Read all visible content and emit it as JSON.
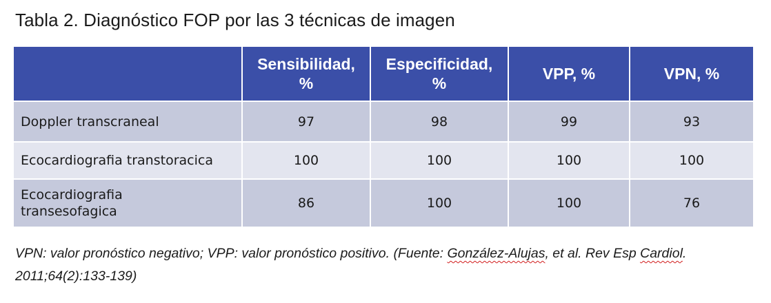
{
  "title": "Tabla 2. Diagnóstico FOP por las 3 técnicas de imagen",
  "table": {
    "headers": [
      {
        "line1": "",
        "line2": ""
      },
      {
        "line1": "Sensibilidad,",
        "line2": "%"
      },
      {
        "line1": "Especificidad,",
        "line2": "%"
      },
      {
        "line1": "VPP, %",
        "line2": ""
      },
      {
        "line1": "VPN, %",
        "line2": ""
      }
    ],
    "rows": [
      {
        "label_line1": "Doppler transcraneal",
        "label_line2": "",
        "values": [
          "97",
          "98",
          "99",
          "93"
        ]
      },
      {
        "label_line1": "Ecocardiografia transtoracica",
        "label_line2": "",
        "values": [
          "100",
          "100",
          "100",
          "100"
        ]
      },
      {
        "label_line1": "Ecocardiografia",
        "label_line2": "transesofagica",
        "values": [
          "86",
          "100",
          "100",
          "76"
        ]
      }
    ]
  },
  "caption": {
    "text_a": "VPN: valor pronóstico negativo; VPP: valor pronóstico positivo. (Fuente: ",
    "author": "González-Alujas",
    "text_b": ", et al. Rev Esp ",
    "journal": "Cardiol",
    "text_c": ". 2011;64(2):133-139)"
  },
  "colors": {
    "header_bg": "#3b4fa8",
    "row_dark": "#c5c9dc",
    "row_light": "#e3e5ef",
    "spell_underline": "#d11a1a"
  }
}
